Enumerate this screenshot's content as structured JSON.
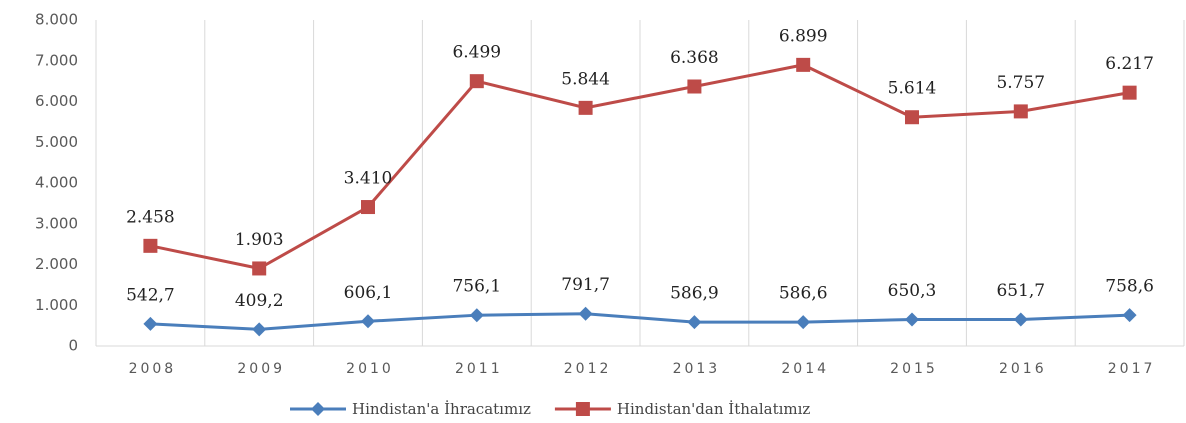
{
  "chart_data": {
    "type": "line",
    "categories": [
      "2008",
      "2009",
      "2010",
      "2011",
      "2012",
      "2013",
      "2014",
      "2015",
      "2016",
      "2017"
    ],
    "series": [
      {
        "name": "Hindistan'a İhracatımız",
        "color": "#4a7ebb",
        "marker": "diamond",
        "values": [
          542.7,
          409.2,
          606.1,
          756.1,
          791.7,
          586.9,
          586.6,
          650.3,
          651.7,
          758.6
        ],
        "value_labels": [
          "542,7",
          "409,2",
          "606,1",
          "756,1",
          "791,7",
          "586,9",
          "586,6",
          "650,3",
          "651,7",
          "758,6"
        ]
      },
      {
        "name": "Hindistan'dan İthalatımız",
        "color": "#be4b48",
        "marker": "square",
        "values": [
          2458,
          1903,
          3410,
          6499,
          5844,
          6368,
          6899,
          5614,
          5757,
          6217
        ],
        "value_labels": [
          "2.458",
          "1.903",
          "3.410",
          "6.499",
          "5.844",
          "6.368",
          "6.899",
          "5.614",
          "5.757",
          "6.217"
        ]
      }
    ],
    "ylim": [
      0,
      8000
    ],
    "yticks": [
      0,
      {
        "value": 1000,
        "label": "1.000"
      },
      {
        "value": 2000,
        "label": "2.000"
      },
      {
        "value": 3000,
        "label": "3.000"
      },
      {
        "value": 4000,
        "label": "4.000"
      },
      {
        "value": 5000,
        "label": "5.000"
      },
      {
        "value": 6000,
        "label": "6.000"
      },
      {
        "value": 7000,
        "label": "7.000"
      },
      {
        "value": 8000,
        "label": "8.000"
      }
    ],
    "grid": "x",
    "legend": "bottom"
  }
}
